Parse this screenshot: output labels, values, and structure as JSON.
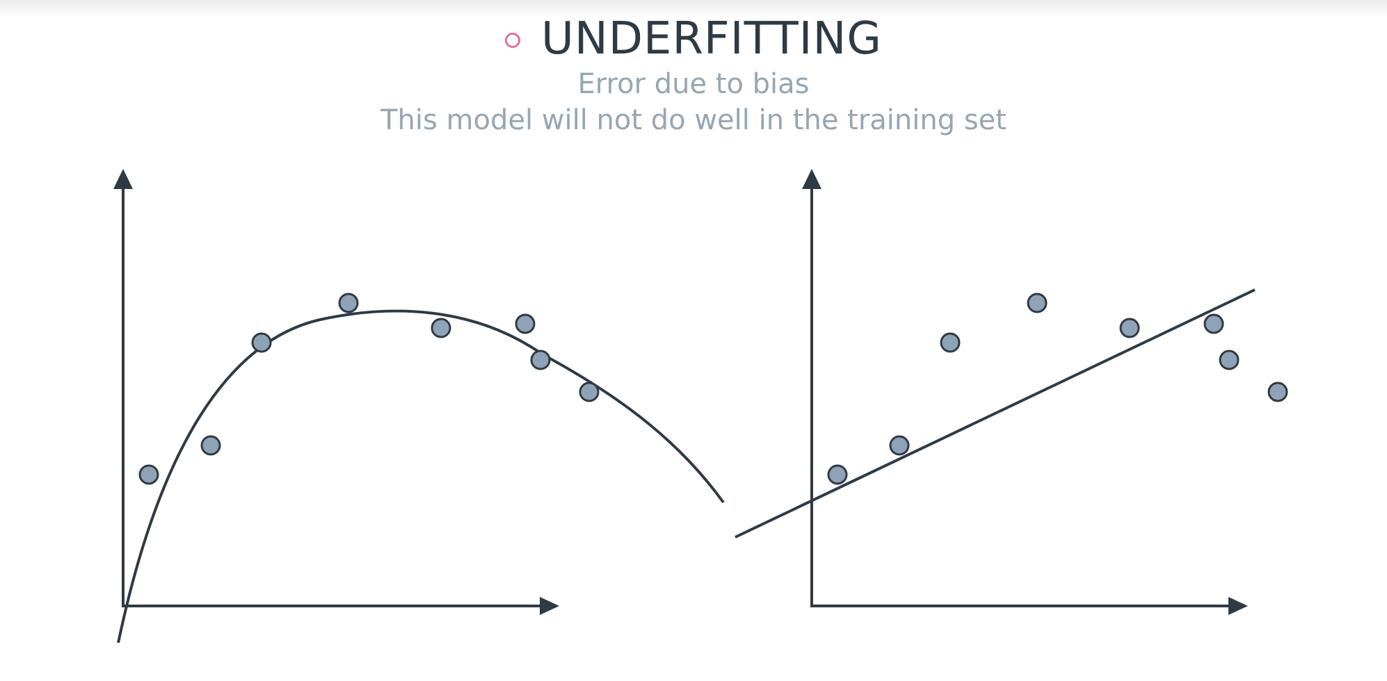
{
  "slide": {
    "title": "UNDERFITTING",
    "subtitle_line1": "Error due to bias",
    "subtitle_line2": "This model will not do well in the training set"
  },
  "colors": {
    "bullet": "#e0709c",
    "title": "#2e3a44",
    "subtitle": "#95a6b4",
    "axis": "#2e3a44",
    "point_fill": "#8fa3b7",
    "point_stroke": "#2e3a44"
  },
  "icons": {
    "bullet": "circle-outline-icon",
    "axis_arrow": "arrow-head-icon"
  },
  "diagram": {
    "left_panel": "curve fit through data points",
    "right_panel": "straight line fit through the same data points"
  }
}
